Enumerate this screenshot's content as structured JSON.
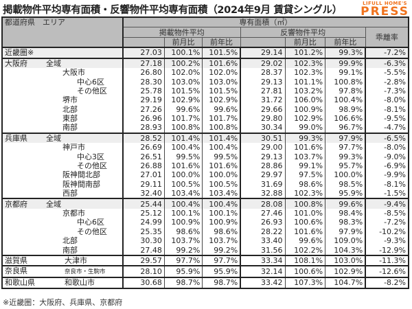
{
  "title": "掲載物件平均専有面積・反響物件平均専有面積（2024年9月 賃貸シングル）",
  "logo": {
    "line1": "LIFULL HOME'S",
    "line2": "PRESS",
    "color": "#f0731e"
  },
  "header": {
    "area": "都道府県　エリア",
    "group": "専有面積（㎡）",
    "listed": "掲載物件平均",
    "inquiry": "反響物件平均",
    "gap": "乖離率",
    "mom": "前月比",
    "yoy": "前年比"
  },
  "rows": [
    {
      "pref": "近畿圏※",
      "area": "",
      "lv": 0,
      "v": [
        "27.03",
        "100.1%",
        "101.5%",
        "29.14",
        "101.2%",
        "99.3%",
        "-7.2%"
      ]
    },
    {
      "pref": "大阪府",
      "area": "全域",
      "lv": 0,
      "v": [
        "27.18",
        "100.2%",
        "101.6%",
        "29.02",
        "102.3%",
        "99.9%",
        "-6.3%"
      ]
    },
    {
      "pref": "",
      "area": "大阪市",
      "lv": 1,
      "v": [
        "26.80",
        "102.0%",
        "102.0%",
        "28.37",
        "102.3%",
        "99.1%",
        "-5.5%"
      ]
    },
    {
      "pref": "",
      "area": "中心6区",
      "lv": 2,
      "v": [
        "28.30",
        "103.0%",
        "103.0%",
        "29.13",
        "101.1%",
        "100.8%",
        "-2.8%"
      ]
    },
    {
      "pref": "",
      "area": "その他区",
      "lv": 2,
      "v": [
        "25.78",
        "101.5%",
        "101.5%",
        "27.81",
        "103.2%",
        "97.8%",
        "-7.3%"
      ]
    },
    {
      "pref": "",
      "area": "堺市",
      "lv": 1,
      "v": [
        "29.19",
        "102.9%",
        "102.9%",
        "31.72",
        "106.0%",
        "100.4%",
        "-8.0%"
      ]
    },
    {
      "pref": "",
      "area": "北部",
      "lv": 1,
      "v": [
        "27.26",
        "99.6%",
        "99.6%",
        "29.66",
        "100.9%",
        "98.9%",
        "-8.1%"
      ]
    },
    {
      "pref": "",
      "area": "東部",
      "lv": 1,
      "v": [
        "26.96",
        "101.7%",
        "101.7%",
        "29.80",
        "102.9%",
        "106.6%",
        "-9.5%"
      ]
    },
    {
      "pref": "",
      "area": "南部",
      "lv": 1,
      "v": [
        "28.93",
        "100.8%",
        "100.8%",
        "30.34",
        "99.0%",
        "96.7%",
        "-4.7%"
      ]
    },
    {
      "pref": "兵庫県",
      "area": "全域",
      "lv": 0,
      "v": [
        "28.52",
        "101.4%",
        "101.4%",
        "30.51",
        "99.3%",
        "97.9%",
        "-6.5%"
      ]
    },
    {
      "pref": "",
      "area": "神戸市",
      "lv": 1,
      "v": [
        "26.69",
        "100.4%",
        "100.4%",
        "29.00",
        "101.6%",
        "97.7%",
        "-8.0%"
      ]
    },
    {
      "pref": "",
      "area": "中心3区",
      "lv": 2,
      "v": [
        "26.51",
        "99.5%",
        "99.5%",
        "29.13",
        "103.7%",
        "99.3%",
        "-9.0%"
      ]
    },
    {
      "pref": "",
      "area": "その他区",
      "lv": 2,
      "v": [
        "26.88",
        "101.6%",
        "101.6%",
        "28.86",
        "99.1%",
        "95.7%",
        "-6.9%"
      ]
    },
    {
      "pref": "",
      "area": "阪神間北部",
      "lv": 1,
      "v": [
        "27.01",
        "100.0%",
        "100.0%",
        "29.97",
        "97.5%",
        "100.0%",
        "-9.9%"
      ]
    },
    {
      "pref": "",
      "area": "阪神間南部",
      "lv": 1,
      "v": [
        "29.11",
        "100.5%",
        "100.5%",
        "31.69",
        "98.6%",
        "98.5%",
        "-8.1%"
      ]
    },
    {
      "pref": "",
      "area": "西部",
      "lv": 1,
      "v": [
        "32.40",
        "103.4%",
        "103.4%",
        "32.88",
        "102.3%",
        "95.9%",
        "-1.5%"
      ]
    },
    {
      "pref": "京都府",
      "area": "全域",
      "lv": 0,
      "v": [
        "25.44",
        "100.4%",
        "100.4%",
        "28.08",
        "100.8%",
        "99.6%",
        "-9.4%"
      ]
    },
    {
      "pref": "",
      "area": "京都市",
      "lv": 1,
      "v": [
        "25.12",
        "100.1%",
        "100.1%",
        "27.46",
        "101.0%",
        "98.4%",
        "-8.5%"
      ]
    },
    {
      "pref": "",
      "area": "中心6区",
      "lv": 2,
      "v": [
        "24.99",
        "100.9%",
        "100.9%",
        "26.93",
        "100.6%",
        "98.3%",
        "-7.2%"
      ]
    },
    {
      "pref": "",
      "area": "その他区",
      "lv": 2,
      "v": [
        "25.35",
        "98.6%",
        "98.6%",
        "28.22",
        "101.6%",
        "97.9%",
        "-10.2%"
      ]
    },
    {
      "pref": "",
      "area": "北部",
      "lv": 1,
      "v": [
        "30.30",
        "103.7%",
        "103.7%",
        "33.40",
        "99.6%",
        "109.0%",
        "-9.3%"
      ]
    },
    {
      "pref": "",
      "area": "南部",
      "lv": 1,
      "v": [
        "27.48",
        "99.2%",
        "99.2%",
        "31.56",
        "102.2%",
        "104.3%",
        "-12.9%"
      ]
    },
    {
      "pref": "滋賀県",
      "area": "大津市",
      "lv": 1,
      "v": [
        "29.57",
        "97.7%",
        "97.7%",
        "33.34",
        "108.1%",
        "103.0%",
        "-11.3%"
      ]
    },
    {
      "pref": "奈良県",
      "area": "奈良市・生駒市",
      "lv": 1,
      "small": true,
      "v": [
        "28.10",
        "95.9%",
        "95.9%",
        "32.14",
        "100.6%",
        "102.9%",
        "-12.6%"
      ]
    },
    {
      "pref": "和歌山県",
      "area": "和歌山市",
      "lv": 1,
      "v": [
        "30.68",
        "98.7%",
        "98.7%",
        "33.42",
        "107.3%",
        "104.7%",
        "-8.2%"
      ]
    }
  ],
  "footnote": "※近畿圏：大阪府、兵庫県、京都府"
}
